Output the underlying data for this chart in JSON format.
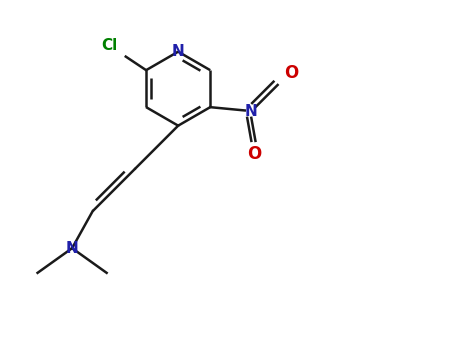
{
  "background_color": "#ffffff",
  "bond_color": "#1a1a1a",
  "atom_colors": {
    "N": "#2020aa",
    "O": "#cc0000",
    "Cl": "#008000",
    "C": "#1a1a1a"
  },
  "figsize": [
    4.55,
    3.5
  ],
  "dpi": 100,
  "xlim": [
    0,
    5.5
  ],
  "ylim": [
    0,
    4.2
  ]
}
